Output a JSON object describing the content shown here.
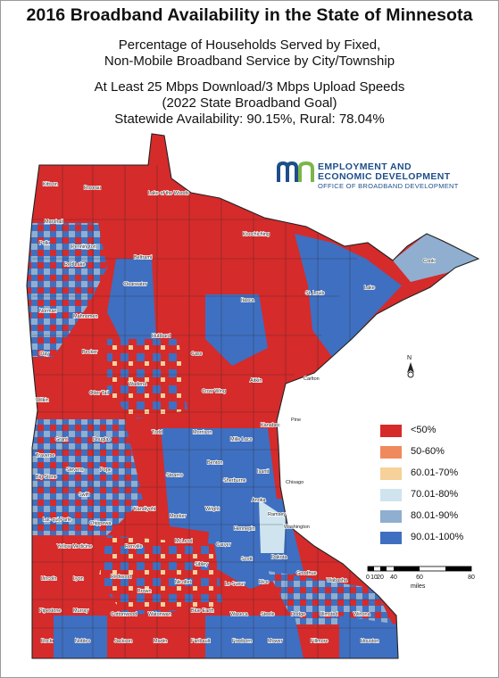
{
  "title": "2016 Broadband Availability in the State of Minnesota",
  "subtitle": {
    "line1": "Percentage of Households Served by Fixed,",
    "line2": "Non-Mobile Broadband Service by City/Township",
    "line3": "At Least 25 Mbps Download/3 Mbps Upload Speeds",
    "line4": "(2022 State Broadband Goal)",
    "line5": "Statewide Availability: 90.15%, Rural: 78.04%"
  },
  "logo": {
    "line1": "EMPLOYMENT AND",
    "line2": "ECONOMIC DEVELOPMENT",
    "line3": "OFFICE OF BROADBAND DEVELOPMENT",
    "mark": "mn",
    "colors": {
      "navy": "#1d4e8b",
      "green": "#7ab648"
    }
  },
  "legend": [
    {
      "label": "<50%",
      "color": "#d52b2b"
    },
    {
      "label": "50-60%",
      "color": "#f08a5c"
    },
    {
      "label": "60.01-70%",
      "color": "#f6d199"
    },
    {
      "label": "70.01-80%",
      "color": "#cfe4ee"
    },
    {
      "label": "80.01-90%",
      "color": "#8faed0"
    },
    {
      "label": "90.01-100%",
      "color": "#3f6fc0"
    }
  ],
  "scale": {
    "ticks": [
      "0",
      "10",
      "20",
      "40",
      "60",
      "80"
    ],
    "units": "miles"
  },
  "north": {
    "label": "N",
    "icon": "north-arrow-icon"
  },
  "counties": [
    "Kittson",
    "Roseau",
    "Lake of the Woods",
    "Koochiching",
    "Cook",
    "Marshall",
    "Polk",
    "Pennington",
    "Red Lake",
    "Beltrami",
    "Itasca",
    "St. Louis",
    "Lake",
    "Clearwater",
    "Norman",
    "Mahnomen",
    "Hubbard",
    "Cass",
    "Clay",
    "Becker",
    "Wadena",
    "Crow Wing",
    "Aitkin",
    "Carlton",
    "Wilkin",
    "Otter Tail",
    "Todd",
    "Morrison",
    "Mille Lacs",
    "Kanabec",
    "Pine",
    "Grant",
    "Douglas",
    "Traverse",
    "Stevens",
    "Pope",
    "Stearns",
    "Benton",
    "Sherburne",
    "Isanti",
    "Chisago",
    "Big Stone",
    "Swift",
    "Kandiyohi",
    "Meeker",
    "Wright",
    "Anoka",
    "Lac qui Parle",
    "Chippewa",
    "Ramsey",
    "Hennepin",
    "Washington",
    "Yellow Medicine",
    "Renville",
    "McLeod",
    "Carver",
    "Scott",
    "Dakota",
    "Lincoln",
    "Lyon",
    "Redwood",
    "Sibley",
    "Le Sueur",
    "Rice",
    "Goodhue",
    "Wabasha",
    "Nicollet",
    "Brown",
    "Pipestone",
    "Murray",
    "Cottonwood",
    "Watonwan",
    "Blue Earth",
    "Waseca",
    "Steele",
    "Dodge",
    "Olmsted",
    "Winona",
    "Rock",
    "Nobles",
    "Jackson",
    "Martin",
    "Faribault",
    "Freeborn",
    "Mower",
    "Fillmore",
    "Houston"
  ]
}
